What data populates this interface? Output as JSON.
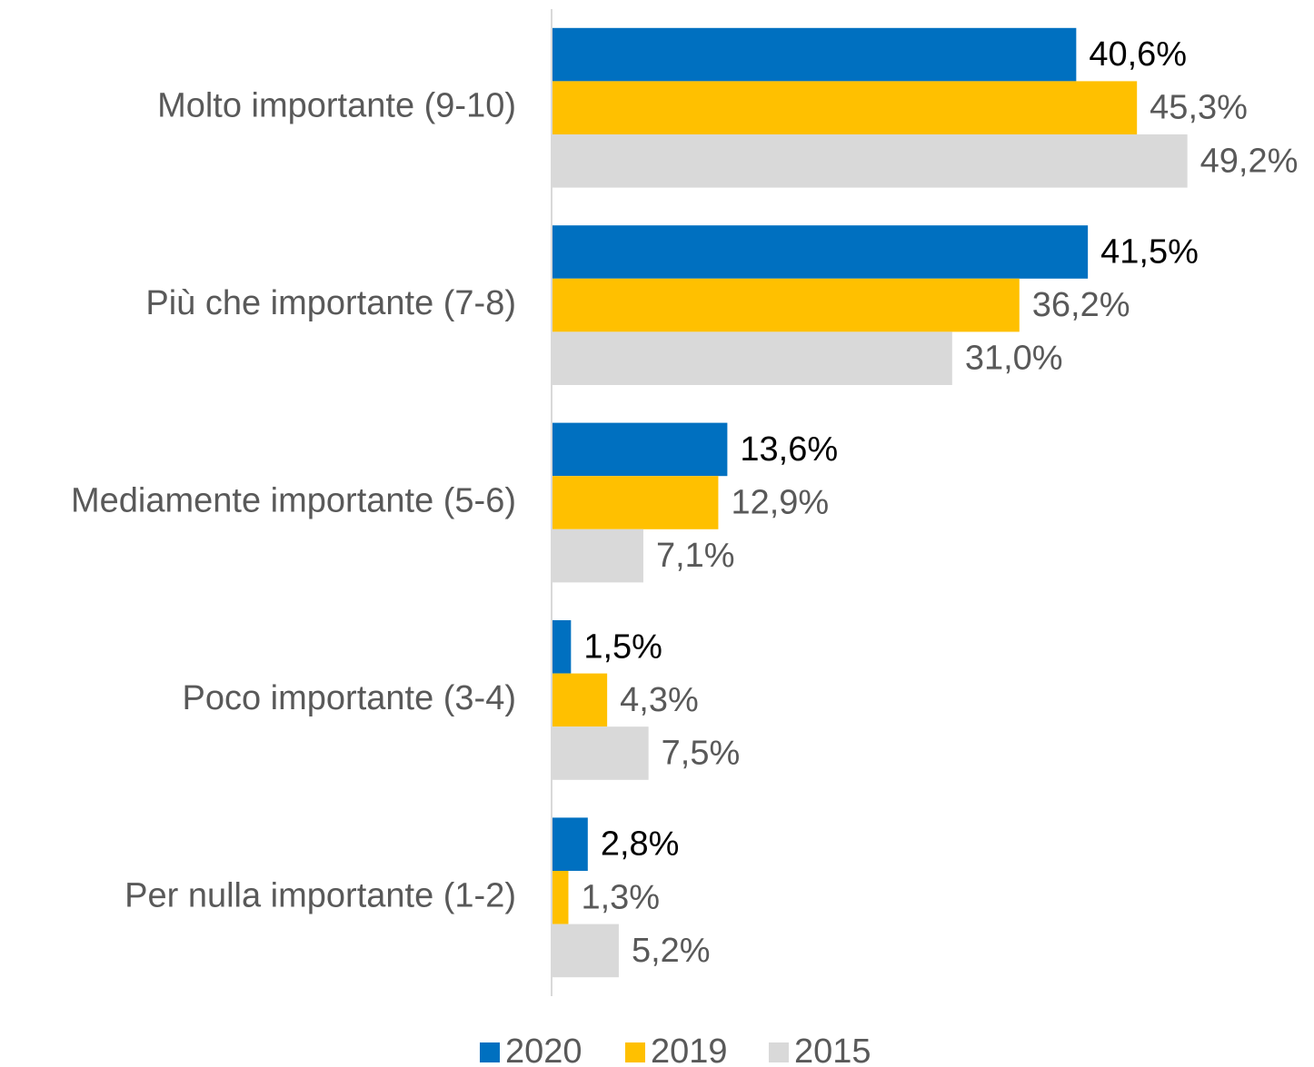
{
  "chart_data": {
    "type": "hbar",
    "categories": [
      "Molto importante (9-10)",
      "Più che importante (7-8)",
      "Mediamente importante (5-6)",
      "Poco importante (3-4)",
      "Per nulla importante (1-2)"
    ],
    "series": [
      {
        "name": "2020",
        "color": "#0070c0",
        "values": [
          40.6,
          41.5,
          13.6,
          1.5,
          2.8
        ],
        "value_labels": [
          "40,6%",
          "41,5%",
          "13,6%",
          "1,5%",
          "2,8%"
        ]
      },
      {
        "name": "2019",
        "color": "#ffc000",
        "values": [
          45.3,
          36.2,
          12.9,
          4.3,
          1.3
        ],
        "value_labels": [
          "45,3%",
          "36,2%",
          "12,9%",
          "4,3%",
          "1,3%"
        ]
      },
      {
        "name": "2015",
        "color": "#d9d9d9",
        "values": [
          49.2,
          31.0,
          7.1,
          7.5,
          5.2
        ],
        "value_labels": [
          "49,2%",
          "31,0%",
          "7,1%",
          "7,5%",
          "5,2%"
        ]
      }
    ],
    "xlim": [
      0,
      59
    ],
    "legend": "bottom"
  }
}
